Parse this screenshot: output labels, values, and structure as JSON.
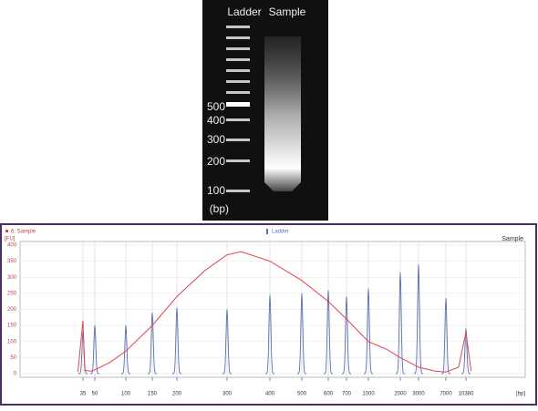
{
  "gel": {
    "lanes": [
      "Ladder",
      "Sample"
    ],
    "markers": [
      "500",
      "400",
      "300",
      "200",
      "100",
      "(bp)"
    ]
  },
  "chart_data": {
    "type": "line",
    "legend": [
      "6: Sample",
      "Ladder"
    ],
    "panel_label": "Sample",
    "y_label": "[FU]",
    "x_label": "[bp]",
    "ylim": [
      0,
      400
    ],
    "yticks": [
      0,
      50,
      100,
      150,
      200,
      250,
      300,
      350,
      400
    ],
    "xticks": [
      35,
      50,
      100,
      150,
      200,
      300,
      400,
      500,
      600,
      700,
      1000,
      2000,
      3000,
      7000,
      10380
    ],
    "grid": true,
    "series": [
      {
        "name": "6: Sample",
        "color": "#e0474f",
        "type": "line",
        "x": [
          30,
          35,
          37,
          45,
          50,
          70,
          100,
          150,
          200,
          250,
          300,
          330,
          400,
          500,
          600,
          700,
          1000,
          1500,
          2000,
          3000,
          5000,
          7000,
          9000,
          10380,
          11500
        ],
        "values": [
          5,
          165,
          10,
          8,
          12,
          35,
          70,
          150,
          240,
          320,
          370,
          380,
          350,
          290,
          225,
          170,
          100,
          75,
          50,
          20,
          8,
          5,
          20,
          130,
          8
        ]
      },
      {
        "name": "Ladder",
        "color": "#5a6fb0",
        "type": "peaks",
        "x": [
          35,
          50,
          100,
          150,
          200,
          300,
          400,
          500,
          600,
          700,
          1000,
          2000,
          3000,
          7000,
          10380
        ],
        "values": [
          130,
          150,
          150,
          190,
          205,
          200,
          245,
          250,
          260,
          240,
          265,
          315,
          340,
          235,
          140
        ]
      }
    ]
  }
}
